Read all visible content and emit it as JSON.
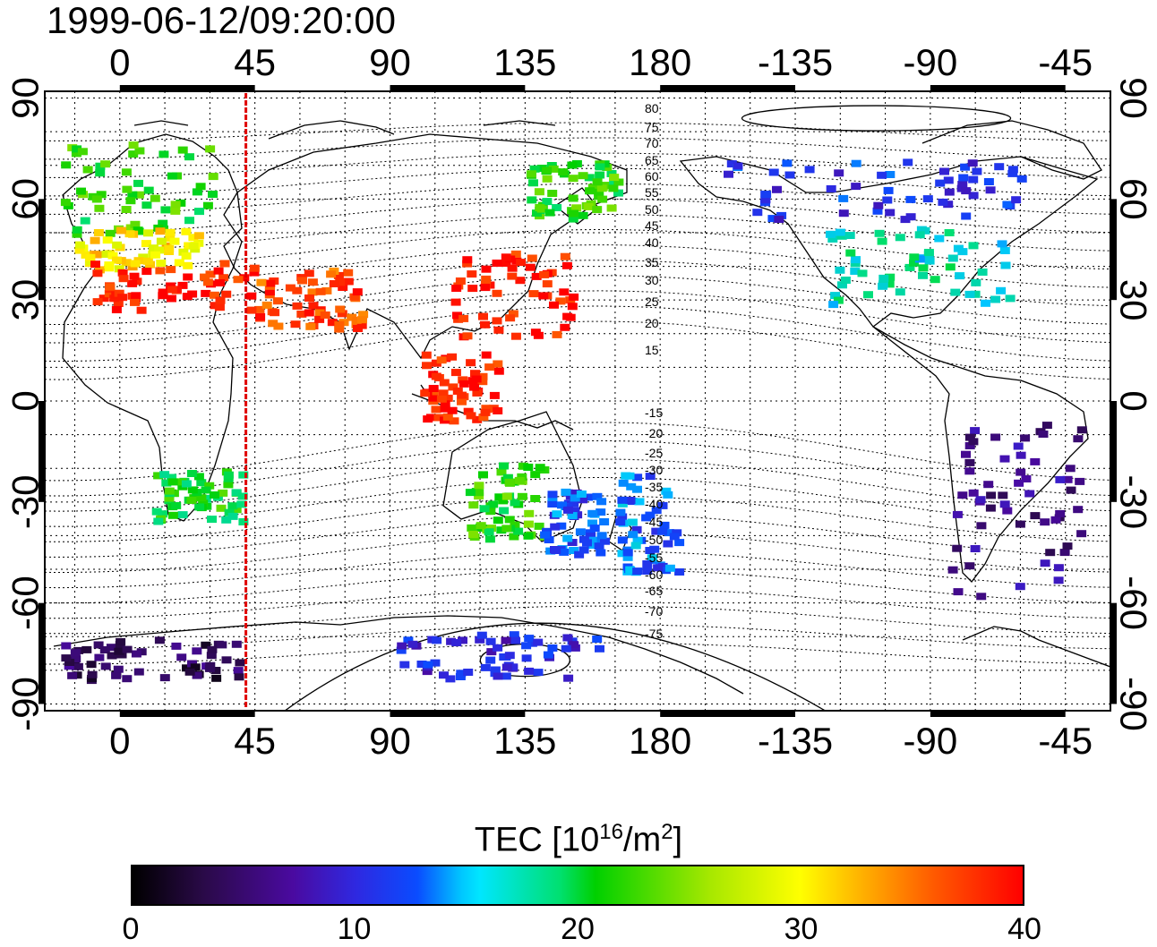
{
  "timestamp": "1999-06-12/09:20:00",
  "top_axis_labels": [
    "0",
    "45",
    "90",
    "135",
    "180",
    "-135",
    "-90",
    "-45"
  ],
  "bottom_axis_labels": [
    "0",
    "45",
    "90",
    "135",
    "180",
    "-135",
    "-90",
    "-45"
  ],
  "left_axis_labels": [
    "90",
    "60",
    "30",
    "0",
    "-30",
    "-60",
    "-90"
  ],
  "right_axis_labels": [
    "90",
    "60",
    "30",
    "0",
    "-30",
    "-60",
    "-90"
  ],
  "contour_labels_north": [
    "80",
    "75",
    "70",
    "65",
    "60",
    "55",
    "50",
    "45",
    "40",
    "35",
    "30",
    "25",
    "20",
    "15"
  ],
  "contour_labels_south": [
    "-15",
    "-20",
    "-25",
    "-30",
    "-35",
    "-40",
    "-45",
    "-50",
    "-55",
    "-60",
    "-65",
    "-70",
    "-75"
  ],
  "colorbar": {
    "title_main": "TEC  [10",
    "title_exp1": "16",
    "title_mid": "/m",
    "title_exp2": "2",
    "title_end": "]",
    "min": 0,
    "max": 40,
    "tick_labels": [
      "0",
      "10",
      "20",
      "30",
      "40"
    ]
  },
  "colors": {
    "terminator_line": "#e00000"
  },
  "map_data": {
    "lon_range": [
      -25,
      330
    ],
    "lat_range": [
      -92,
      92
    ],
    "terminator_lon": 42,
    "tec_regions": [
      {
        "name": "europe-north",
        "lon": [
          -20,
          30
        ],
        "lat": [
          50,
          78
        ],
        "tec": 22
      },
      {
        "name": "europe-central",
        "lon": [
          -15,
          25
        ],
        "lat": [
          40,
          52
        ],
        "tec": 31
      },
      {
        "name": "europe-south",
        "lon": [
          -10,
          45
        ],
        "lat": [
          28,
          42
        ],
        "tec": 39
      },
      {
        "name": "middle-east",
        "lon": [
          45,
          80
        ],
        "lat": [
          22,
          40
        ],
        "tec": 37
      },
      {
        "name": "east-asia",
        "lon": [
          110,
          150
        ],
        "lat": [
          20,
          45
        ],
        "tec": 39
      },
      {
        "name": "siberia-east",
        "lon": [
          135,
          165
        ],
        "lat": [
          55,
          72
        ],
        "tec": 22
      },
      {
        "name": "se-asia",
        "lon": [
          100,
          125
        ],
        "lat": [
          -5,
          15
        ],
        "tec": 39
      },
      {
        "name": "australia-west",
        "lon": [
          115,
          140
        ],
        "lat": [
          -40,
          -18
        ],
        "tec": 22
      },
      {
        "name": "australia-east",
        "lon": [
          140,
          160
        ],
        "lat": [
          -45,
          -25
        ],
        "tec": 12
      },
      {
        "name": "new-zealand",
        "lon": [
          165,
          185
        ],
        "lat": [
          -50,
          -20
        ],
        "tec": 13
      },
      {
        "name": "north-america-north",
        "lon": [
          200,
          300
        ],
        "lat": [
          55,
          72
        ],
        "tec": 11
      },
      {
        "name": "north-america-south",
        "lon": [
          235,
          295
        ],
        "lat": [
          28,
          52
        ],
        "tec": 17
      },
      {
        "name": "south-america",
        "lon": [
          275,
          320
        ],
        "lat": [
          -58,
          -5
        ],
        "tec": 6
      },
      {
        "name": "antarctica-west",
        "lon": [
          -20,
          40
        ],
        "lat": [
          -82,
          -70
        ],
        "tec": 4
      },
      {
        "name": "antarctica-pacific",
        "lon": [
          90,
          160
        ],
        "lat": [
          -82,
          -68
        ],
        "tec": 10
      },
      {
        "name": "africa-south",
        "lon": [
          10,
          40
        ],
        "lat": [
          -35,
          -20
        ],
        "tec": 21
      }
    ]
  }
}
